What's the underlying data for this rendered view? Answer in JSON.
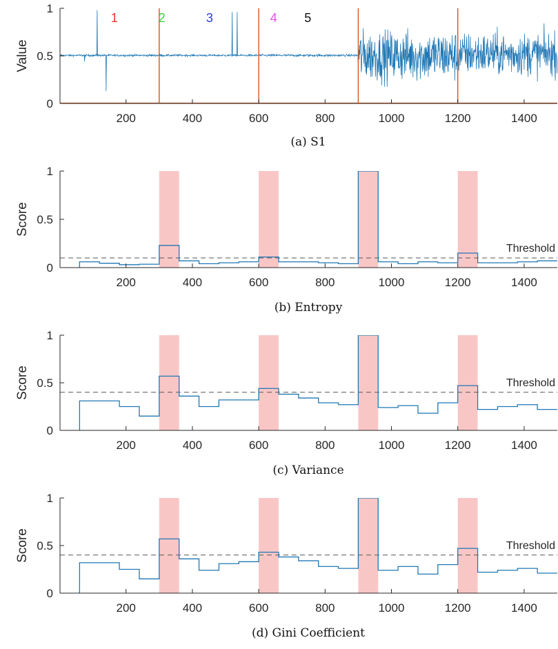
{
  "chart_data": [
    {
      "type": "line",
      "caption": "(a) S1",
      "ylabel": "Value",
      "xlim": [
        1,
        1500
      ],
      "ylim": [
        0,
        1
      ],
      "xticks": [
        200,
        400,
        600,
        800,
        1000,
        1200,
        1400
      ],
      "yticks": [
        0,
        0.5,
        1
      ],
      "change_points": [
        300,
        600,
        900,
        1200
      ],
      "segments": [
        {
          "label": "1",
          "x": 165,
          "color": "#e8352b"
        },
        {
          "label": "2",
          "x": 308,
          "color": "#3ed13e"
        },
        {
          "label": "3",
          "x": 452,
          "color": "#2f3fd6"
        },
        {
          "label": "4",
          "x": 645,
          "color": "#e64ee6"
        },
        {
          "label": "5",
          "x": 748,
          "color": "#111111"
        }
      ],
      "spikes": [
        {
          "x": 113,
          "y": 0.98
        },
        {
          "x": 140,
          "y": 0.13
        },
        {
          "x": 75,
          "y": 0.44
        },
        {
          "x": 520,
          "y": 0.96
        },
        {
          "x": 535,
          "y": 0.96
        }
      ],
      "colors": {
        "line": "#1f77b4",
        "change": "#d95319"
      }
    },
    {
      "type": "line",
      "caption": "(b) Entropy",
      "ylabel": "Score",
      "xlim": [
        1,
        1500
      ],
      "ylim": [
        0,
        1
      ],
      "xticks": [
        200,
        400,
        600,
        800,
        1000,
        1200,
        1400
      ],
      "yticks": [
        0,
        0.5,
        1
      ],
      "threshold": 0.1,
      "threshold_label": "Threshold",
      "highlight": [
        [
          300,
          360
        ],
        [
          600,
          660
        ],
        [
          900,
          960
        ],
        [
          1200,
          1260
        ]
      ],
      "step_x": [
        60,
        120,
        180,
        240,
        300,
        360,
        420,
        480,
        540,
        600,
        660,
        720,
        780,
        840,
        900,
        960,
        1020,
        1080,
        1140,
        1200,
        1260,
        1320,
        1380,
        1440,
        1500
      ],
      "step_y": [
        0.06,
        0.045,
        0.03,
        0.035,
        0.23,
        0.07,
        0.04,
        0.05,
        0.06,
        0.11,
        0.06,
        0.06,
        0.05,
        0.04,
        1.0,
        0.06,
        0.04,
        0.06,
        0.05,
        0.15,
        0.05,
        0.05,
        0.06,
        0.07
      ]
    },
    {
      "type": "line",
      "caption": "(c) Variance",
      "ylabel": "Score",
      "xlim": [
        1,
        1500
      ],
      "ylim": [
        0,
        1
      ],
      "xticks": [
        200,
        400,
        600,
        800,
        1000,
        1200,
        1400
      ],
      "yticks": [
        0,
        0.5,
        1
      ],
      "threshold": 0.4,
      "threshold_label": "Threshold",
      "highlight": [
        [
          300,
          360
        ],
        [
          600,
          660
        ],
        [
          900,
          960
        ],
        [
          1200,
          1260
        ]
      ],
      "step_x": [
        60,
        120,
        180,
        240,
        300,
        360,
        420,
        480,
        540,
        600,
        660,
        720,
        780,
        840,
        900,
        960,
        1020,
        1080,
        1140,
        1200,
        1260,
        1320,
        1380,
        1440,
        1500
      ],
      "step_y": [
        0.31,
        0.31,
        0.25,
        0.15,
        0.57,
        0.36,
        0.25,
        0.32,
        0.32,
        0.44,
        0.38,
        0.34,
        0.29,
        0.27,
        1.0,
        0.24,
        0.26,
        0.18,
        0.29,
        0.47,
        0.22,
        0.25,
        0.27,
        0.22
      ]
    },
    {
      "type": "line",
      "caption": "(d) Gini Coefficient",
      "ylabel": "Score",
      "xlim": [
        1,
        1500
      ],
      "ylim": [
        0,
        1
      ],
      "xticks": [
        200,
        400,
        600,
        800,
        1000,
        1200,
        1400
      ],
      "yticks": [
        0,
        0.5,
        1
      ],
      "threshold": 0.4,
      "threshold_label": "Threshold",
      "highlight": [
        [
          300,
          360
        ],
        [
          600,
          660
        ],
        [
          900,
          960
        ],
        [
          1200,
          1260
        ]
      ],
      "step_x": [
        60,
        120,
        180,
        240,
        300,
        360,
        420,
        480,
        540,
        600,
        660,
        720,
        780,
        840,
        900,
        960,
        1020,
        1080,
        1140,
        1200,
        1260,
        1320,
        1380,
        1440,
        1500
      ],
      "step_y": [
        0.32,
        0.32,
        0.25,
        0.15,
        0.57,
        0.36,
        0.24,
        0.31,
        0.33,
        0.43,
        0.38,
        0.34,
        0.28,
        0.26,
        1.0,
        0.24,
        0.28,
        0.2,
        0.3,
        0.47,
        0.22,
        0.24,
        0.26,
        0.21
      ]
    }
  ],
  "colors": {
    "step": "#1f77b4",
    "threshold": "#555555",
    "highlight": "#f7b3b3",
    "axis": "#262626"
  }
}
